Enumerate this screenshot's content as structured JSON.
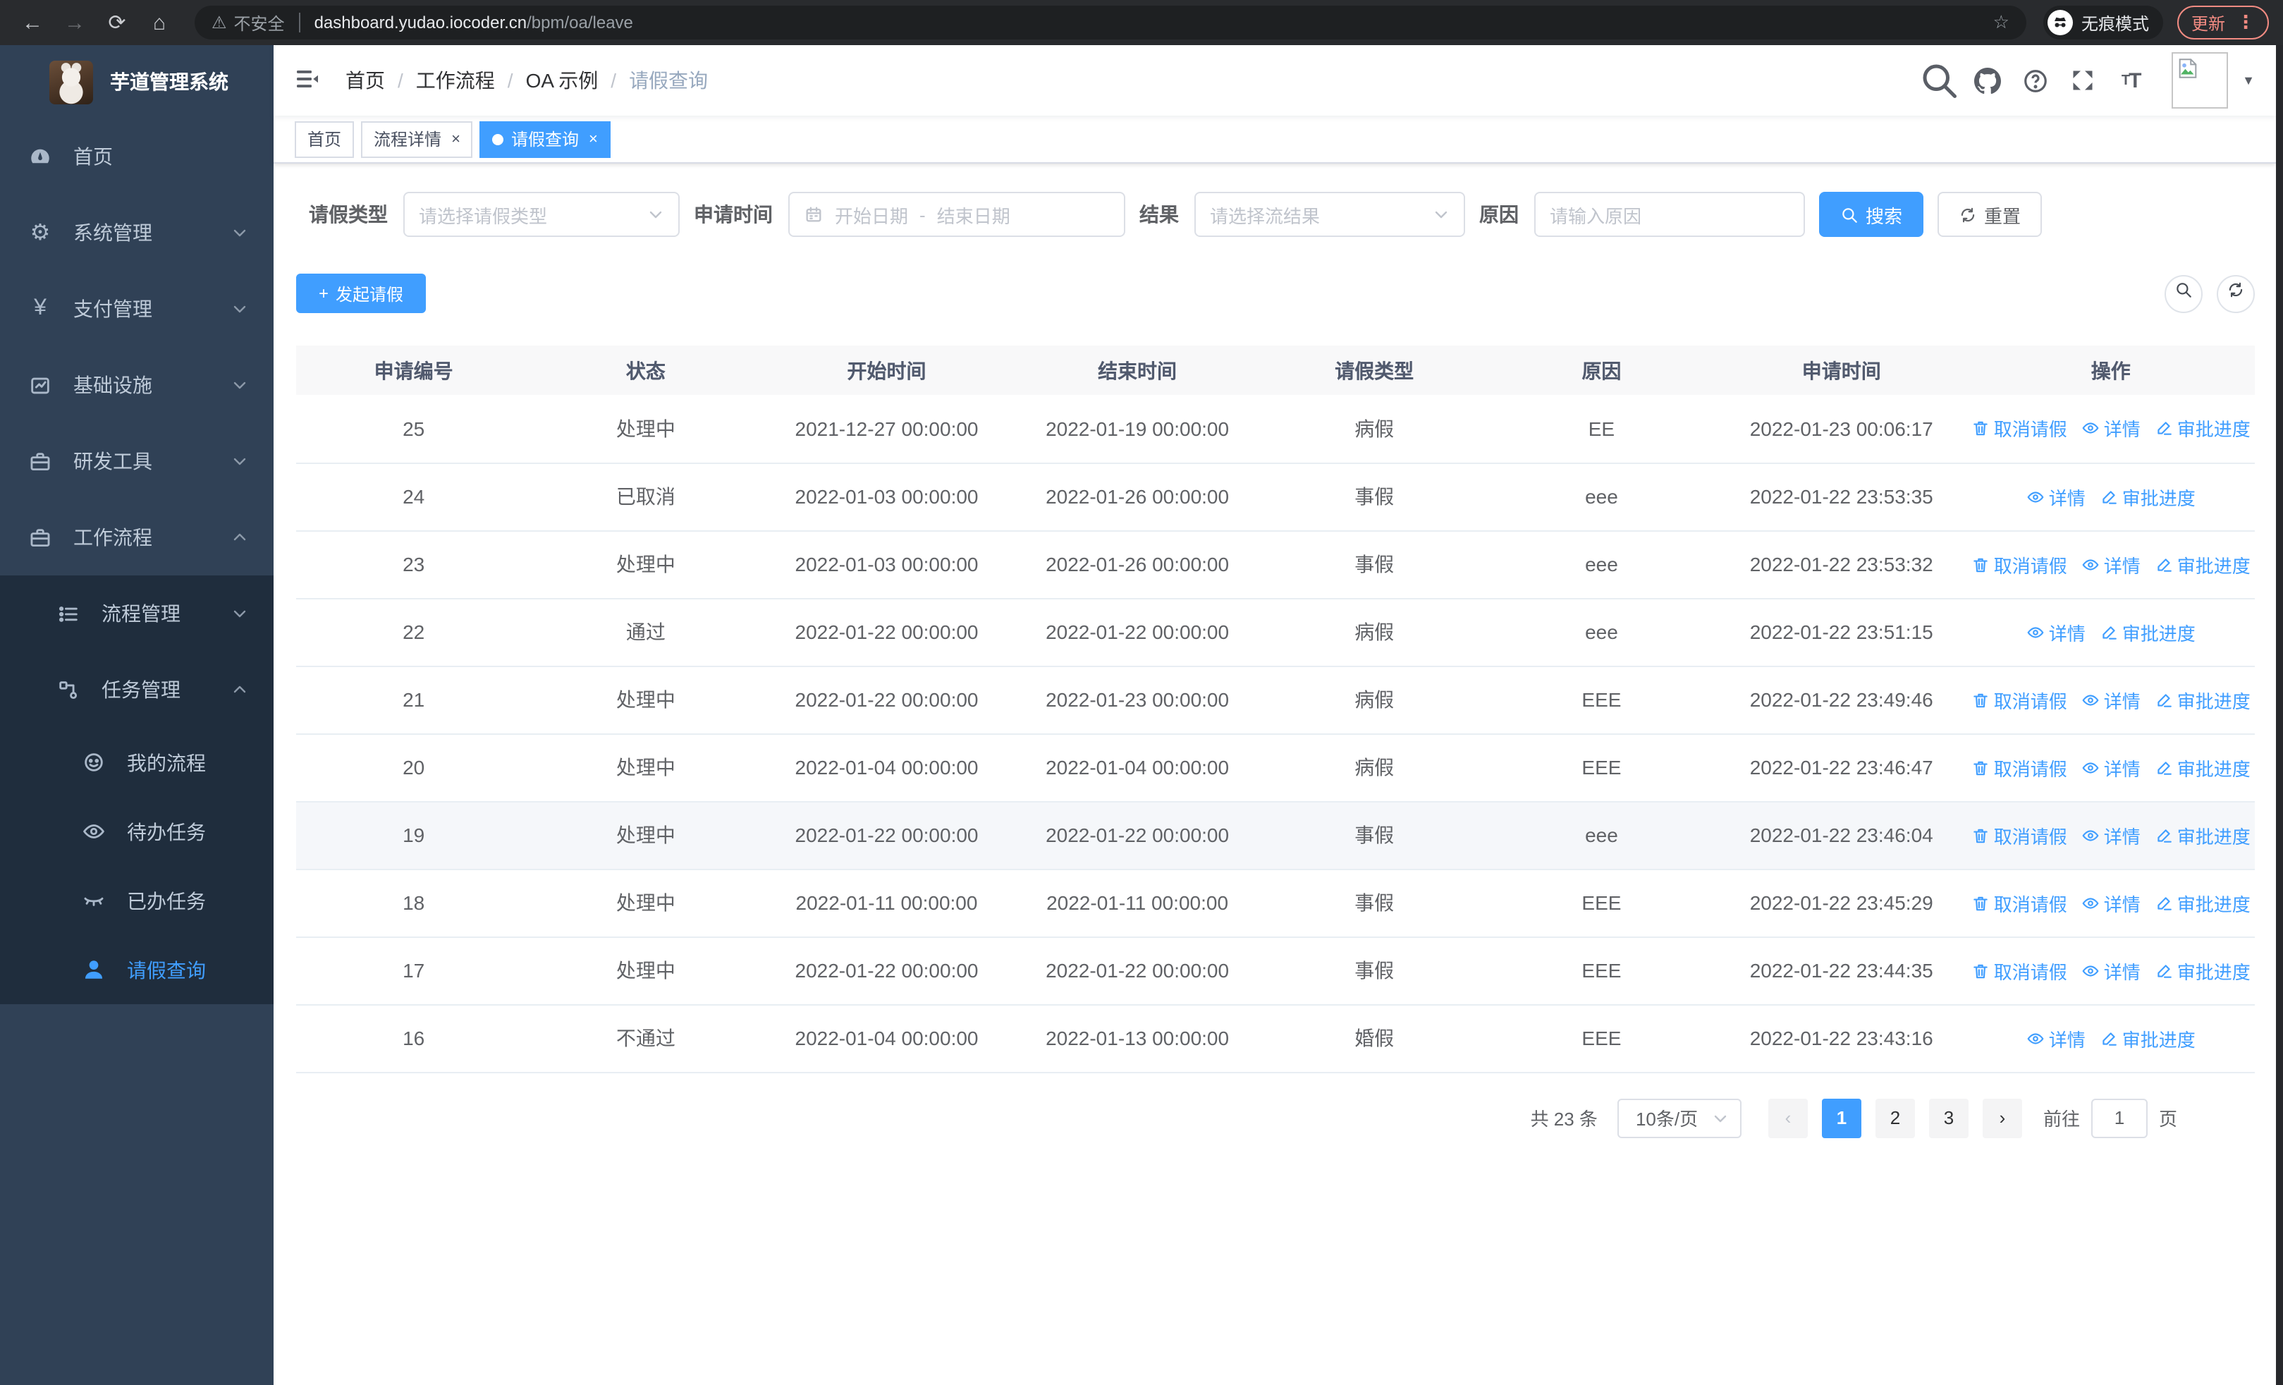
{
  "colors": {
    "primary": "#409eff",
    "sidebar_bg": "#304156",
    "submenu_bg": "#1f2d3d",
    "update_accent": "#f28b82"
  },
  "browser": {
    "back": "←",
    "forward": "→",
    "reload": "⟳",
    "home": "⌂",
    "security_warning": "不安全",
    "url_host": "dashboard.yudao.iocoder.cn",
    "url_path": "/bpm/oa/leave",
    "bookmark_star": "☆",
    "incognito_label": "无痕模式",
    "update_label": "更新",
    "menu_dots": "⋮"
  },
  "sidebar": {
    "title": "芋道管理系统",
    "menu": [
      {
        "label": "首页"
      },
      {
        "label": "系统管理"
      },
      {
        "label": "支付管理"
      },
      {
        "label": "基础设施"
      },
      {
        "label": "研发工具"
      },
      {
        "label": "工作流程"
      },
      {
        "label": "流程管理"
      },
      {
        "label": "任务管理"
      },
      {
        "label": "我的流程"
      },
      {
        "label": "待办任务"
      },
      {
        "label": "已办任务"
      },
      {
        "label": "请假查询"
      }
    ]
  },
  "navbar": {
    "breadcrumb": [
      {
        "label": "首页",
        "cls": "",
        "sep": "/"
      },
      {
        "label": "工作流程",
        "cls": "",
        "sep": "/"
      },
      {
        "label": "OA 示例",
        "cls": "",
        "sep": "/"
      },
      {
        "label": "请假查询",
        "cls": "current",
        "sep": ""
      }
    ],
    "font_icon_big": "T",
    "font_icon_small": "T",
    "caret": "▼"
  },
  "tags": [
    {
      "label": "首页"
    },
    {
      "label": "流程详情",
      "close": "×"
    },
    {
      "label": "请假查询",
      "close": "×"
    }
  ],
  "filters": {
    "leave_type_label": "请假类型",
    "leave_type_placeholder": "请选择请假类型",
    "apply_time_label": "申请时间",
    "date_start_placeholder": "开始日期",
    "date_separator": "-",
    "date_end_placeholder": "结束日期",
    "result_label": "结果",
    "result_placeholder": "请选择流结果",
    "reason_label": "原因",
    "reason_placeholder": "请输入原因",
    "search_label": "搜索",
    "reset_label": "重置"
  },
  "toolbar": {
    "create_label": "发起请假",
    "plus": "+"
  },
  "table": {
    "columns": [
      "申请编号",
      "状态",
      "开始时间",
      "结束时间",
      "请假类型",
      "原因",
      "申请时间",
      "操作"
    ],
    "rows": [
      {
        "id": "25",
        "status": "处理中",
        "start": "2021-12-27 00:00:00",
        "end": "2022-01-19 00:00:00",
        "type": "病假",
        "reason": "EE",
        "applied": "2022-01-23 00:06:17",
        "row_cls": "",
        "actions": [
          {
            "icon": "trash",
            "label": "取消请假"
          },
          {
            "icon": "eye",
            "label": "详情"
          },
          {
            "icon": "edit",
            "label": "审批进度"
          }
        ]
      },
      {
        "id": "24",
        "status": "已取消",
        "start": "2022-01-03 00:00:00",
        "end": "2022-01-26 00:00:00",
        "type": "事假",
        "reason": "eee",
        "applied": "2022-01-22 23:53:35",
        "row_cls": "",
        "actions": [
          {
            "icon": "eye",
            "label": "详情"
          },
          {
            "icon": "edit",
            "label": "审批进度"
          }
        ]
      },
      {
        "id": "23",
        "status": "处理中",
        "start": "2022-01-03 00:00:00",
        "end": "2022-01-26 00:00:00",
        "type": "事假",
        "reason": "eee",
        "applied": "2022-01-22 23:53:32",
        "row_cls": "",
        "actions": [
          {
            "icon": "trash",
            "label": "取消请假"
          },
          {
            "icon": "eye",
            "label": "详情"
          },
          {
            "icon": "edit",
            "label": "审批进度"
          }
        ]
      },
      {
        "id": "22",
        "status": "通过",
        "start": "2022-01-22 00:00:00",
        "end": "2022-01-22 00:00:00",
        "type": "病假",
        "reason": "eee",
        "applied": "2022-01-22 23:51:15",
        "row_cls": "",
        "actions": [
          {
            "icon": "eye",
            "label": "详情"
          },
          {
            "icon": "edit",
            "label": "审批进度"
          }
        ]
      },
      {
        "id": "21",
        "status": "处理中",
        "start": "2022-01-22 00:00:00",
        "end": "2022-01-23 00:00:00",
        "type": "病假",
        "reason": "EEE",
        "applied": "2022-01-22 23:49:46",
        "row_cls": "",
        "actions": [
          {
            "icon": "trash",
            "label": "取消请假"
          },
          {
            "icon": "eye",
            "label": "详情"
          },
          {
            "icon": "edit",
            "label": "审批进度"
          }
        ]
      },
      {
        "id": "20",
        "status": "处理中",
        "start": "2022-01-04 00:00:00",
        "end": "2022-01-04 00:00:00",
        "type": "病假",
        "reason": "EEE",
        "applied": "2022-01-22 23:46:47",
        "row_cls": "",
        "actions": [
          {
            "icon": "trash",
            "label": "取消请假"
          },
          {
            "icon": "eye",
            "label": "详情"
          },
          {
            "icon": "edit",
            "label": "审批进度"
          }
        ]
      },
      {
        "id": "19",
        "status": "处理中",
        "start": "2022-01-22 00:00:00",
        "end": "2022-01-22 00:00:00",
        "type": "事假",
        "reason": "eee",
        "applied": "2022-01-22 23:46:04",
        "row_cls": "hover",
        "actions": [
          {
            "icon": "trash",
            "label": "取消请假"
          },
          {
            "icon": "eye",
            "label": "详情"
          },
          {
            "icon": "edit",
            "label": "审批进度"
          }
        ]
      },
      {
        "id": "18",
        "status": "处理中",
        "start": "2022-01-11 00:00:00",
        "end": "2022-01-11 00:00:00",
        "type": "事假",
        "reason": "EEE",
        "applied": "2022-01-22 23:45:29",
        "row_cls": "",
        "actions": [
          {
            "icon": "trash",
            "label": "取消请假"
          },
          {
            "icon": "eye",
            "label": "详情"
          },
          {
            "icon": "edit",
            "label": "审批进度"
          }
        ]
      },
      {
        "id": "17",
        "status": "处理中",
        "start": "2022-01-22 00:00:00",
        "end": "2022-01-22 00:00:00",
        "type": "事假",
        "reason": "EEE",
        "applied": "2022-01-22 23:44:35",
        "row_cls": "",
        "actions": [
          {
            "icon": "trash",
            "label": "取消请假"
          },
          {
            "icon": "eye",
            "label": "详情"
          },
          {
            "icon": "edit",
            "label": "审批进度"
          }
        ]
      },
      {
        "id": "16",
        "status": "不通过",
        "start": "2022-01-04 00:00:00",
        "end": "2022-01-13 00:00:00",
        "type": "婚假",
        "reason": "EEE",
        "applied": "2022-01-22 23:43:16",
        "row_cls": "",
        "actions": [
          {
            "icon": "eye",
            "label": "详情"
          },
          {
            "icon": "edit",
            "label": "审批进度"
          }
        ]
      }
    ]
  },
  "pagination": {
    "total": "共 23 条",
    "page_size": "10条/页",
    "prev": "‹",
    "next": "›",
    "pages": [
      {
        "n": "1",
        "cls": "active"
      },
      {
        "n": "2",
        "cls": ""
      },
      {
        "n": "3",
        "cls": ""
      }
    ],
    "goto_label": "前往",
    "goto_value": "1",
    "goto_unit": "页"
  }
}
